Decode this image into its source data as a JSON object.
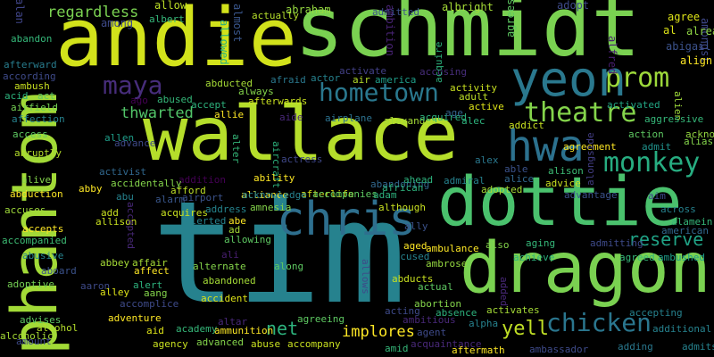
{
  "background": "#000000",
  "palette": {
    "yellow": "#fde725",
    "lime": "#b5de2b",
    "green": "#6ece58",
    "teal_green": "#35b779",
    "teal": "#1f9e89",
    "blue_teal": "#26828e",
    "blue": "#31688e",
    "indigo": "#3e4989",
    "purple": "#482878",
    "dark_purple": "#440154"
  },
  "words": [
    {
      "text": "tim",
      "color": "#26828e"
    },
    {
      "text": "schmidt",
      "color": "#7ad151"
    },
    {
      "text": "andie",
      "color": "#d2e21b"
    },
    {
      "text": "wallace",
      "color": "#b5de2b"
    },
    {
      "text": "dottie",
      "color": "#4ac16d"
    },
    {
      "text": "dragon",
      "color": "#7ad151"
    },
    {
      "text": "phantom",
      "color": "#a2da37"
    },
    {
      "text": "chris",
      "color": "#2e6f8e"
    },
    {
      "text": "yeon",
      "color": "#2a788e"
    },
    {
      "text": "hwa",
      "color": "#2c718e"
    },
    {
      "text": "monkey",
      "color": "#27ad81"
    },
    {
      "text": "theatre",
      "color": "#84d44b"
    },
    {
      "text": "prom",
      "color": "#9dd93b"
    },
    {
      "text": "hometown",
      "color": "#2a788e"
    },
    {
      "text": "maya",
      "color": "#472d7b"
    },
    {
      "text": "chicken",
      "color": "#2a768e"
    },
    {
      "text": "reserve",
      "color": "#20a386"
    },
    {
      "text": "thwarted",
      "color": "#52c569"
    },
    {
      "text": "implores",
      "color": "#fde725"
    },
    {
      "text": "yell",
      "color": "#c0df25"
    },
    {
      "text": "net",
      "color": "#2db27d"
    },
    {
      "text": "regardless",
      "color": "#7ad151"
    },
    {
      "text": "abraham",
      "color": "#95d840"
    },
    {
      "text": "albright",
      "color": "#a5db36"
    },
    {
      "text": "actually",
      "color": "#b5de2b"
    },
    {
      "text": "admitted",
      "color": "#3b528b"
    },
    {
      "text": "adopt",
      "color": "#3e4a89"
    },
    {
      "text": "agree",
      "color": "#dde318"
    },
    {
      "text": "allow",
      "color": "#bddf26"
    },
    {
      "text": "albert",
      "color": "#35b779"
    },
    {
      "text": "alan",
      "color": "#404588"
    },
    {
      "text": "among",
      "color": "#3e4a89"
    },
    {
      "text": "almost",
      "color": "#39568c"
    },
    {
      "text": "allowed",
      "color": "#2db27d"
    },
    {
      "text": "ambition",
      "color": "#482374"
    },
    {
      "text": "amongst",
      "color": "#3f4889"
    },
    {
      "text": "agrees",
      "color": "#5ec962"
    },
    {
      "text": "alfred",
      "color": "#481f70"
    },
    {
      "text": "al",
      "color": "#dde318"
    },
    {
      "text": "abigail",
      "color": "#3b528b"
    },
    {
      "text": "already",
      "color": "#8fd744"
    },
    {
      "text": "align",
      "color": "#fde725"
    },
    {
      "text": "abandon",
      "color": "#35b779"
    },
    {
      "text": "afterward",
      "color": "#287d8e"
    },
    {
      "text": "according",
      "color": "#3e4a89"
    },
    {
      "text": "ambush",
      "color": "#c8e020"
    },
    {
      "text": "act",
      "color": "#5ec962"
    },
    {
      "text": "acid",
      "color": "#2db27d"
    },
    {
      "text": "airfield",
      "color": "#75d054"
    },
    {
      "text": "affection",
      "color": "#26828e"
    },
    {
      "text": "access",
      "color": "#5ec962"
    },
    {
      "text": "abruptly",
      "color": "#b5de2b"
    },
    {
      "text": "alive",
      "color": "#84d44b"
    },
    {
      "text": "abduction",
      "color": "#fde725"
    },
    {
      "text": "accuses",
      "color": "#9fda3a"
    },
    {
      "text": "accepts",
      "color": "#fde725"
    },
    {
      "text": "accompanied",
      "color": "#3dbc74"
    },
    {
      "text": "abusive",
      "color": "#26828e"
    },
    {
      "text": "aboard",
      "color": "#3b528b"
    },
    {
      "text": "adoptive",
      "color": "#75d054"
    },
    {
      "text": "advises",
      "color": "#5ec962"
    },
    {
      "text": "alcohol",
      "color": "#b5de2b"
    },
    {
      "text": "alcoholic",
      "color": "#a5db36"
    },
    {
      "text": "amount",
      "color": "#3e4a89"
    },
    {
      "text": "ago",
      "color": "#440154"
    },
    {
      "text": "abused",
      "color": "#35b779"
    },
    {
      "text": "accept",
      "color": "#2db27d"
    },
    {
      "text": "abducted",
      "color": "#a5db36"
    },
    {
      "text": "always",
      "color": "#84d44b"
    },
    {
      "text": "afraid",
      "color": "#2a788e"
    },
    {
      "text": "actor",
      "color": "#26828e"
    },
    {
      "text": "air",
      "color": "#b5de2b"
    },
    {
      "text": "america",
      "color": "#1f9e89"
    },
    {
      "text": "activate",
      "color": "#424086"
    },
    {
      "text": "accusing",
      "color": "#472d7b"
    },
    {
      "text": "activity",
      "color": "#c8e020"
    },
    {
      "text": "acquire",
      "color": "#2db27d"
    },
    {
      "text": "adult",
      "color": "#bddf26"
    },
    {
      "text": "active",
      "color": "#dde318"
    },
    {
      "text": "activated",
      "color": "#22a785"
    },
    {
      "text": "alien",
      "color": "#9fda3a"
    },
    {
      "text": "allie",
      "color": "#fde725"
    },
    {
      "text": "afterwards",
      "color": "#c8e020"
    },
    {
      "text": "aide",
      "color": "#482878"
    },
    {
      "text": "airplane",
      "color": "#2c718e"
    },
    {
      "text": "alexander",
      "color": "#a5db36"
    },
    {
      "text": "acquired",
      "color": "#2db27d"
    },
    {
      "text": "age",
      "color": "#32648e"
    },
    {
      "text": "alec",
      "color": "#2db27d"
    },
    {
      "text": "addict",
      "color": "#c8e020"
    },
    {
      "text": "aggressive",
      "color": "#35b779"
    },
    {
      "text": "action",
      "color": "#5ec962"
    },
    {
      "text": "acknowledges",
      "color": "#95d840"
    },
    {
      "text": "admit",
      "color": "#20928c"
    },
    {
      "text": "alias",
      "color": "#84d44b"
    },
    {
      "text": "allen",
      "color": "#1f9e89"
    },
    {
      "text": "advance",
      "color": "#3e4a89"
    },
    {
      "text": "alter",
      "color": "#35b779"
    },
    {
      "text": "aircraft",
      "color": "#2db27d"
    },
    {
      "text": "actress",
      "color": "#3f4889"
    },
    {
      "text": "alex",
      "color": "#2a788e"
    },
    {
      "text": "able",
      "color": "#3b528b"
    },
    {
      "text": "alice",
      "color": "#31688e"
    },
    {
      "text": "alison",
      "color": "#3dbc74"
    },
    {
      "text": "agreement",
      "color": "#fde725"
    },
    {
      "text": "activist",
      "color": "#31688e"
    },
    {
      "text": "addition",
      "color": "#440154"
    },
    {
      "text": "ability",
      "color": "#fde725"
    },
    {
      "text": "abandoning",
      "color": "#31688e"
    },
    {
      "text": "ahead",
      "color": "#2db27d"
    },
    {
      "text": "admiral",
      "color": "#26828e"
    },
    {
      "text": "adopted",
      "color": "#a5db36"
    },
    {
      "text": "advice",
      "color": "#c8e020"
    },
    {
      "text": "advantage",
      "color": "#3b528b"
    },
    {
      "text": "aim",
      "color": "#3e4a89"
    },
    {
      "text": "accidentally",
      "color": "#84d44b"
    },
    {
      "text": "abby",
      "color": "#fde725"
    },
    {
      "text": "afford",
      "color": "#bddf26"
    },
    {
      "text": "afterlife",
      "color": "#dde318"
    },
    {
      "text": "african",
      "color": "#2db27d"
    },
    {
      "text": "alliance",
      "color": "#fde725"
    },
    {
      "text": "abu",
      "color": "#26828e"
    },
    {
      "text": "alarm",
      "color": "#39568c"
    },
    {
      "text": "airport",
      "color": "#3b528b"
    },
    {
      "text": "acknowledge",
      "color": "#26828e"
    },
    {
      "text": "accompanies",
      "color": "#5ec962"
    },
    {
      "text": "adam",
      "color": "#2db27d"
    },
    {
      "text": "alongside",
      "color": "#433e85"
    },
    {
      "text": "across",
      "color": "#26828e"
    },
    {
      "text": "alamein",
      "color": "#35b779"
    },
    {
      "text": "american",
      "color": "#31688e"
    },
    {
      "text": "add",
      "color": "#c8e020"
    },
    {
      "text": "allison",
      "color": "#c8e020"
    },
    {
      "text": "accepted",
      "color": "#482878"
    },
    {
      "text": "acquires",
      "color": "#c8e020"
    },
    {
      "text": "address",
      "color": "#25848e"
    },
    {
      "text": "amnesia",
      "color": "#84d44b"
    },
    {
      "text": "although",
      "color": "#c8e020"
    },
    {
      "text": "alerted",
      "color": "#26828e"
    },
    {
      "text": "abe",
      "color": "#fde725"
    },
    {
      "text": "ad",
      "color": "#a5db36"
    },
    {
      "text": "ally",
      "color": "#3b528b"
    },
    {
      "text": "allowing",
      "color": "#5ec962"
    },
    {
      "text": "aged",
      "color": "#fde725"
    },
    {
      "text": "ambulance",
      "color": "#fde725"
    },
    {
      "text": "also",
      "color": "#84d44b"
    },
    {
      "text": "aging",
      "color": "#35b779"
    },
    {
      "text": "admitting",
      "color": "#3e4a89"
    },
    {
      "text": "ali",
      "color": "#481f70"
    },
    {
      "text": "accused",
      "color": "#26828e"
    },
    {
      "text": "achieve",
      "color": "#2db27d"
    },
    {
      "text": "agreed",
      "color": "#35b779"
    },
    {
      "text": "ambushed",
      "color": "#1f9e89"
    },
    {
      "text": "allows",
      "color": "#3e4a89"
    },
    {
      "text": "ambrose",
      "color": "#95d840"
    },
    {
      "text": "abbey",
      "color": "#a5db36"
    },
    {
      "text": "affair",
      "color": "#a5db36"
    },
    {
      "text": "alternate",
      "color": "#84d44b"
    },
    {
      "text": "along",
      "color": "#5ec962"
    },
    {
      "text": "affect",
      "color": "#fde725"
    },
    {
      "text": "aaron",
      "color": "#3e4a89"
    },
    {
      "text": "alley",
      "color": "#dde318"
    },
    {
      "text": "alert",
      "color": "#2db27d"
    },
    {
      "text": "aang",
      "color": "#84d44b"
    },
    {
      "text": "abandoned",
      "color": "#a5db36"
    },
    {
      "text": "abducts",
      "color": "#c8e020"
    },
    {
      "text": "actual",
      "color": "#5ec962"
    },
    {
      "text": "added",
      "color": "#482878"
    },
    {
      "text": "accomplice",
      "color": "#3e4a89"
    },
    {
      "text": "accident",
      "color": "#dde318"
    },
    {
      "text": "abortion",
      "color": "#84d44b"
    },
    {
      "text": "acting",
      "color": "#3e4a89"
    },
    {
      "text": "absence",
      "color": "#2db27d"
    },
    {
      "text": "activates",
      "color": "#a5db36"
    },
    {
      "text": "accepting",
      "color": "#26828e"
    },
    {
      "text": "adventure",
      "color": "#fde725"
    },
    {
      "text": "ambitious",
      "color": "#482878"
    },
    {
      "text": "alpha",
      "color": "#26828e"
    },
    {
      "text": "altar",
      "color": "#482878"
    },
    {
      "text": "agreeing",
      "color": "#5ec962"
    },
    {
      "text": "additional",
      "color": "#26828e"
    },
    {
      "text": "aid",
      "color": "#dde318"
    },
    {
      "text": "academy",
      "color": "#35b779"
    },
    {
      "text": "ammunition",
      "color": "#fde725"
    },
    {
      "text": "agent",
      "color": "#3e4a89"
    },
    {
      "text": "adding",
      "color": "#2a788e"
    },
    {
      "text": "admits",
      "color": "#26828e"
    },
    {
      "text": "agency",
      "color": "#c8e020"
    },
    {
      "text": "advanced",
      "color": "#84d44b"
    },
    {
      "text": "abuse",
      "color": "#c8e020"
    },
    {
      "text": "accompany",
      "color": "#c8e020"
    },
    {
      "text": "acquaintance",
      "color": "#482878"
    },
    {
      "text": "amid",
      "color": "#35b779"
    },
    {
      "text": "aftermath",
      "color": "#fde725"
    },
    {
      "text": "ambassador",
      "color": "#3e4a89"
    }
  ]
}
